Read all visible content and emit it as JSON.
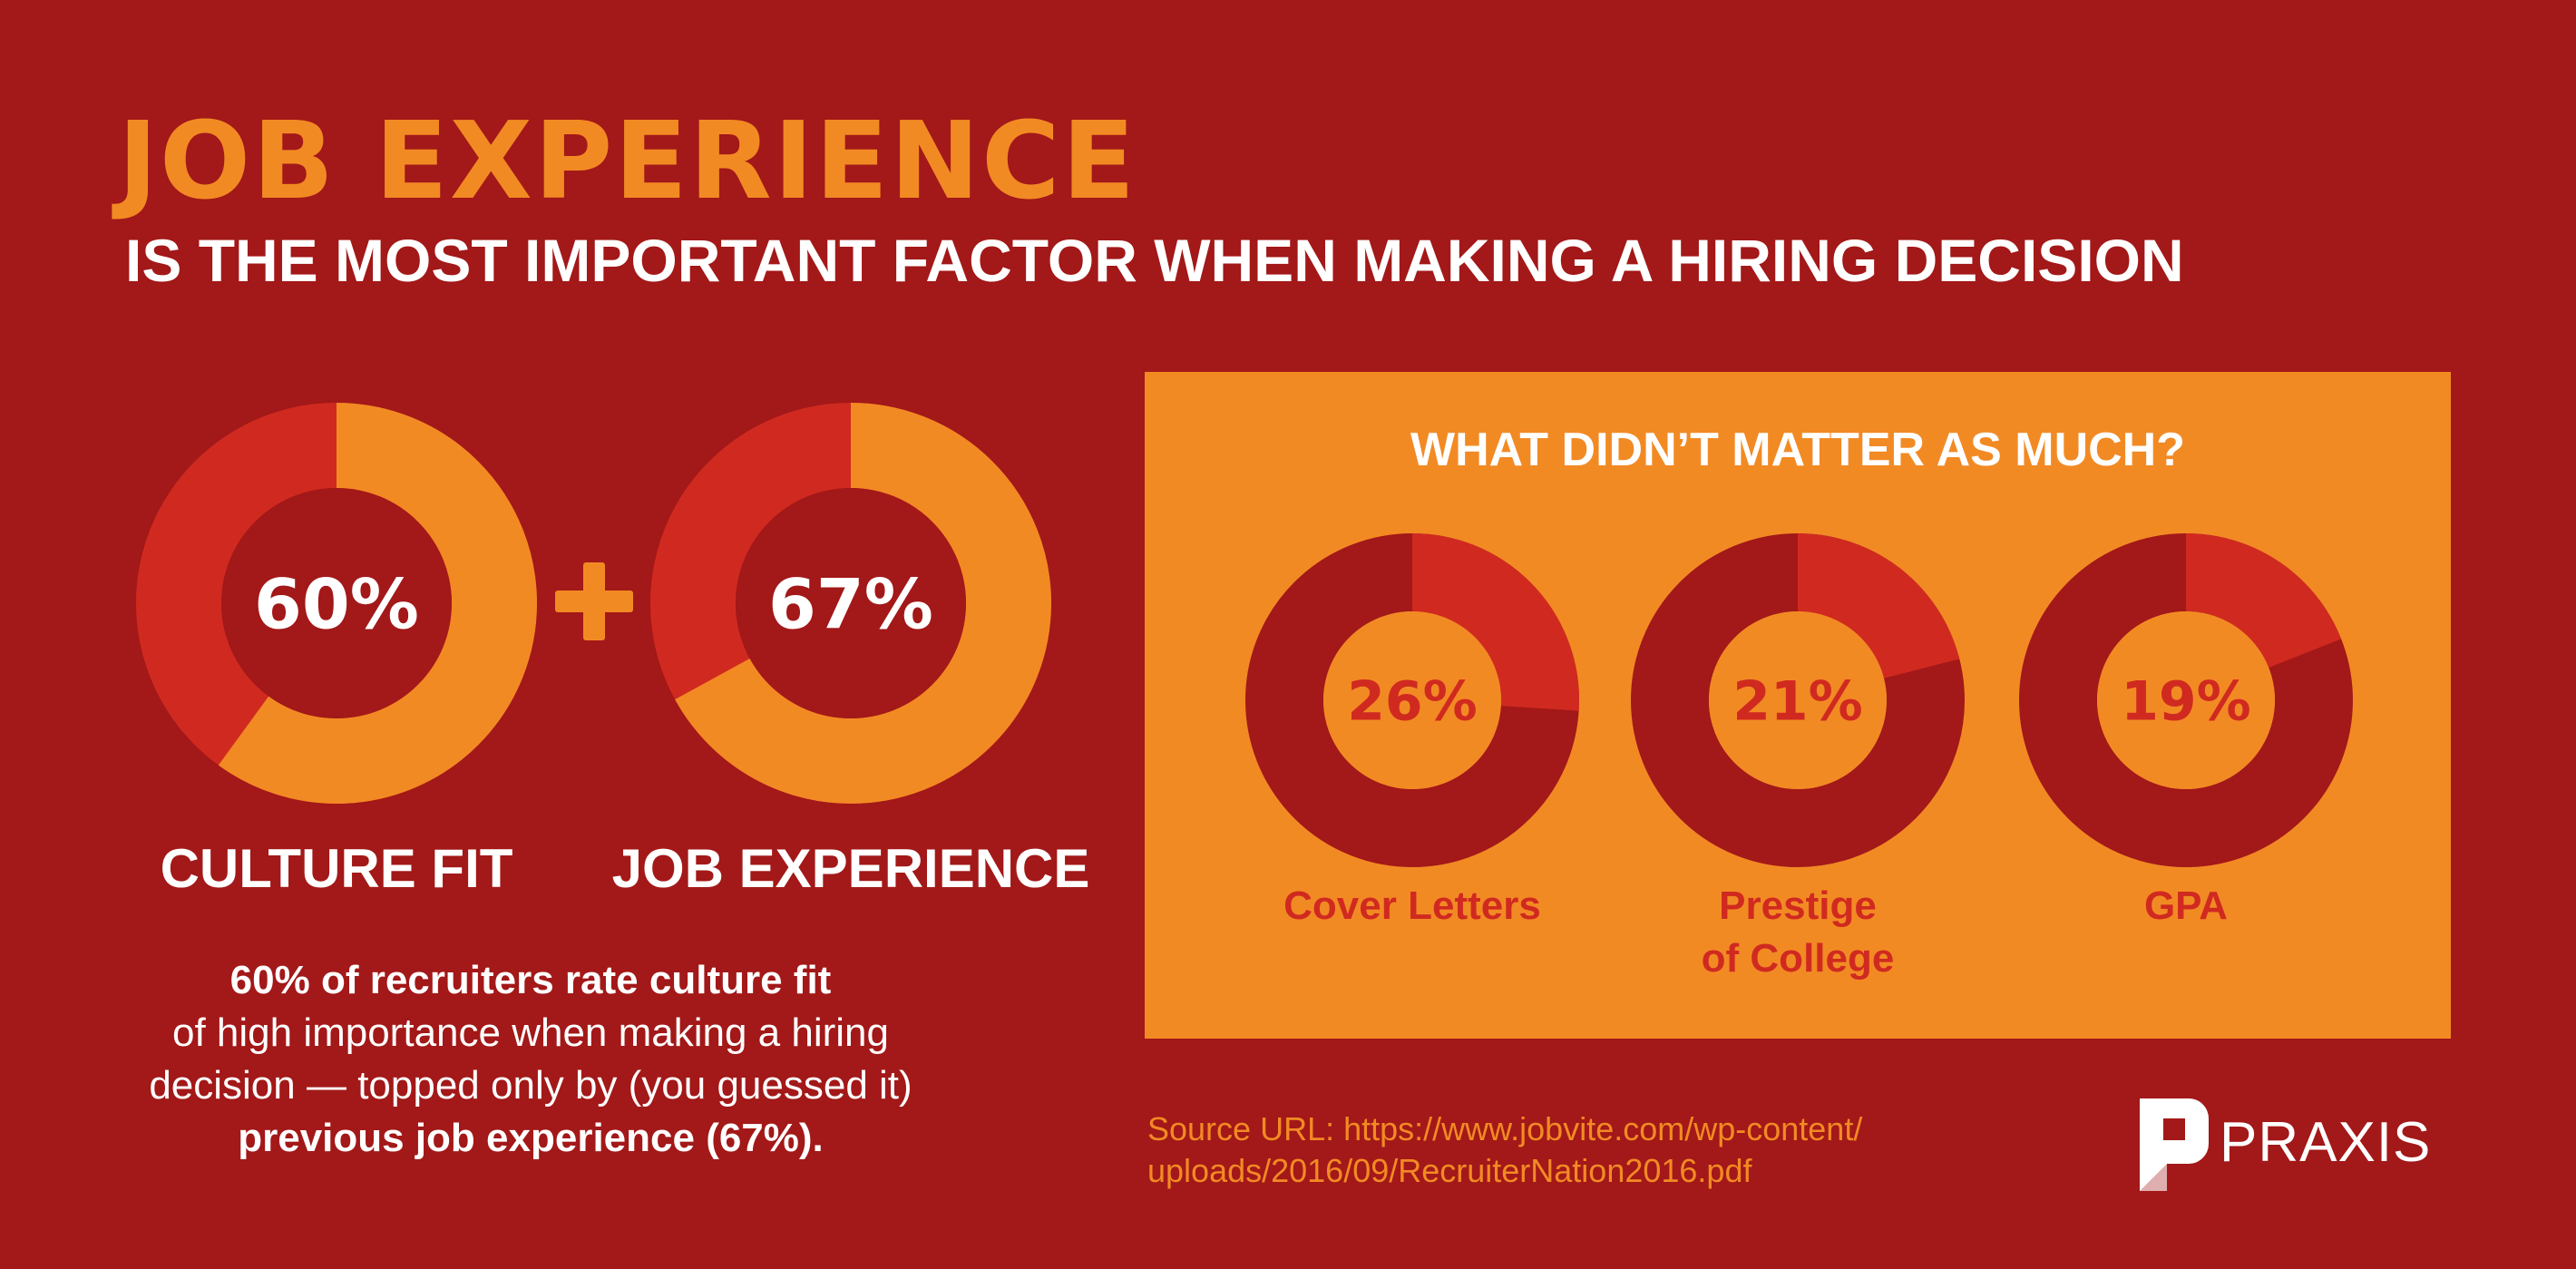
{
  "colors": {
    "background": "#A31818",
    "orange": "#F28A24",
    "red": "#D02A20",
    "dark_red": "#A31818",
    "white": "#FFFFFF"
  },
  "header": {
    "title": "JOB EXPERIENCE",
    "subtitle": "IS THE MOST IMPORTANT FACTOR WHEN MAKING A HIRING DECISION"
  },
  "summary": {
    "line1": "60% of recruiters rate culture fit",
    "line2": "of high importance when making a hiring",
    "line3": "decision — topped only by (you guessed it)",
    "line4": "previous job experience (67%)."
  },
  "panel": {
    "title": "WHAT DIDN’T MATTER AS MUCH?"
  },
  "source": {
    "line1": "Source URL: https://www.jobvite.com/wp-content/",
    "line2": "uploads/2016/09/RecruiterNation2016.pdf"
  },
  "logo": {
    "name": "PRAXIS",
    "icon": "praxis-logo-icon"
  },
  "chart_data": [
    {
      "type": "pie",
      "variant": "donut",
      "group": "top factors",
      "slices": [
        {
          "label": "CULTURE FIT",
          "value": 60,
          "display": "60%"
        }
      ]
    },
    {
      "type": "pie",
      "variant": "donut",
      "group": "top factors",
      "slices": [
        {
          "label": "JOB EXPERIENCE",
          "value": 67,
          "display": "67%"
        }
      ]
    },
    {
      "type": "pie",
      "variant": "donut",
      "group": "what didn't matter as much",
      "slices": [
        {
          "label": "Cover Letters",
          "value": 26,
          "display": "26%"
        }
      ]
    },
    {
      "type": "pie",
      "variant": "donut",
      "group": "what didn't matter as much",
      "slices": [
        {
          "label": "Prestige of College",
          "label_lines": [
            "Prestige",
            "of College"
          ],
          "value": 21,
          "display": "21%"
        }
      ]
    },
    {
      "type": "pie",
      "variant": "donut",
      "group": "what didn't matter as much",
      "slices": [
        {
          "label": "GPA",
          "value": 19,
          "display": "19%"
        }
      ]
    }
  ]
}
